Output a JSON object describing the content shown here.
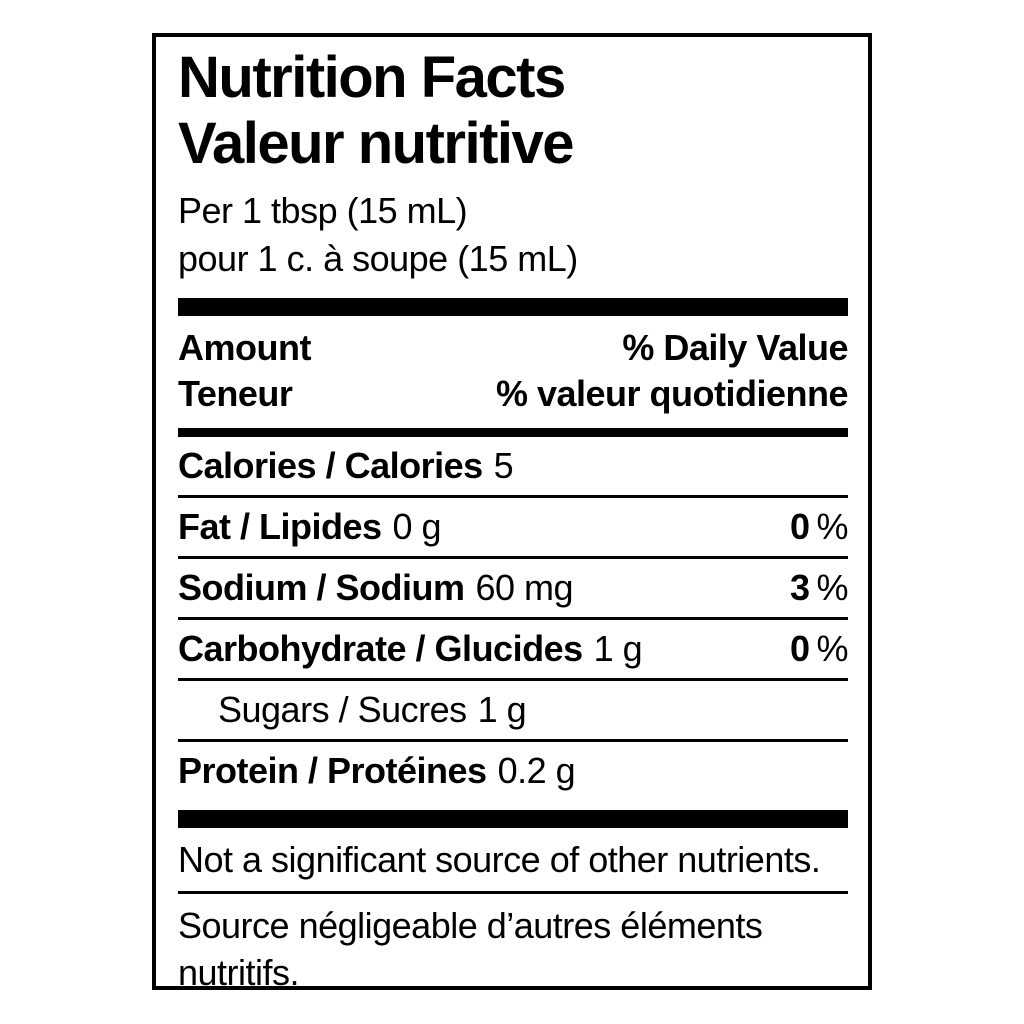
{
  "colors": {
    "text": "#000000",
    "background": "#ffffff",
    "border": "#000000"
  },
  "label": {
    "title_en": "Nutrition Facts",
    "title_fr": "Valeur nutritive",
    "serving_en": "Per 1 tbsp (15 mL)",
    "serving_fr": "pour 1 c. à soupe (15 mL)",
    "columns": {
      "amount_en": "Amount",
      "amount_fr": "Teneur",
      "daily_value_en": "% Daily Value",
      "daily_value_fr": "% valeur quotidienne"
    },
    "calories": {
      "name": "Calories / Calories",
      "value": "5"
    },
    "nutrients": [
      {
        "name": "Fat / Lipides",
        "amount": "0 g",
        "daily_value": "0",
        "daily_value_unit": "%"
      },
      {
        "name": "Sodium / Sodium",
        "amount": "60 mg",
        "daily_value": "3",
        "daily_value_unit": "%"
      },
      {
        "name": "Carbohydrate / Glucides",
        "amount": "1 g",
        "daily_value": "0",
        "daily_value_unit": "%"
      },
      {
        "name": "Sugars / Sucres",
        "amount": "1 g"
      },
      {
        "name": "Protein / Protéines",
        "amount": "0.2 g"
      }
    ],
    "footnote_en": "Not a significant source of other nutrients.",
    "footnote_fr": "Source négligeable d’autres éléments nutritifs."
  }
}
